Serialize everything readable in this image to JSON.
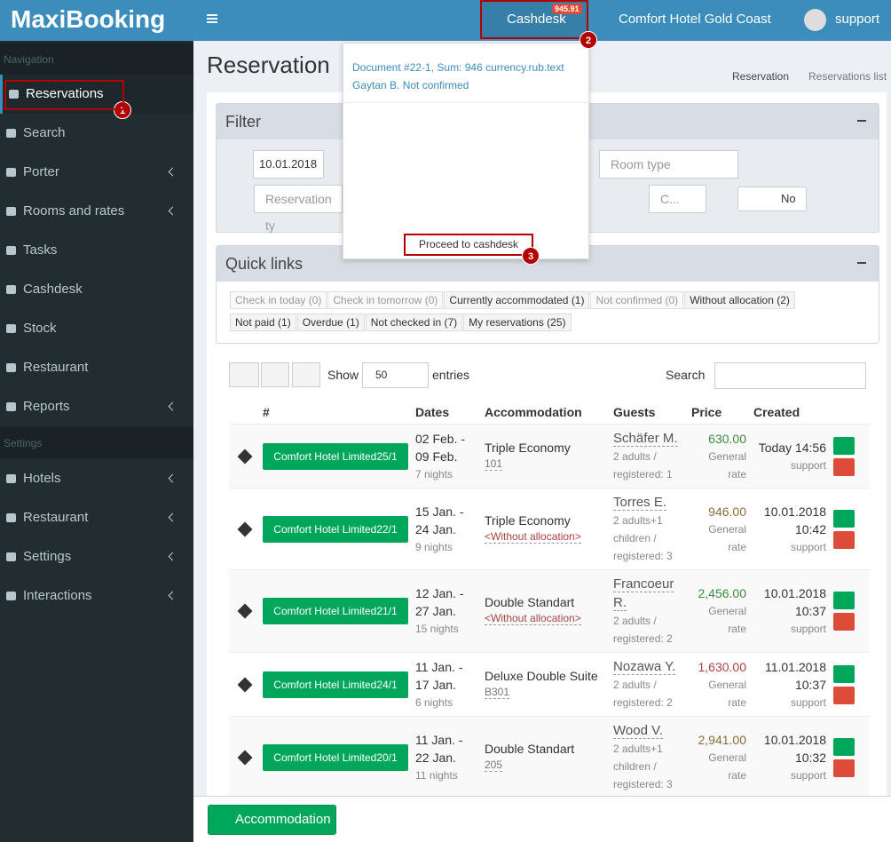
{
  "brand": "MaxiBooking",
  "topbar": {
    "cashdesk": "Cashdesk",
    "badge": "945.91",
    "hotel": "Comfort Hotel Gold Coast",
    "user": "support"
  },
  "annotations": [
    "1",
    "2",
    "3"
  ],
  "sidebar": {
    "nav_header": "Navigation",
    "nav_items": [
      {
        "label": "Reservations",
        "expandable": false
      },
      {
        "label": "Search",
        "expandable": false
      },
      {
        "label": "Porter",
        "expandable": true
      },
      {
        "label": "Rooms and rates",
        "expandable": true
      },
      {
        "label": "Tasks",
        "expandable": false
      },
      {
        "label": "Cashdesk",
        "expandable": false
      },
      {
        "label": "Stock",
        "expandable": false
      },
      {
        "label": "Restaurant",
        "expandable": false
      },
      {
        "label": "Reports",
        "expandable": true
      }
    ],
    "settings_header": "Settings",
    "settings_items": [
      {
        "label": "Hotels",
        "expandable": true
      },
      {
        "label": "Restaurant",
        "expandable": true
      },
      {
        "label": "Settings",
        "expandable": true
      },
      {
        "label": "Interactions",
        "expandable": true
      }
    ]
  },
  "page": {
    "title": "Reservation",
    "breadcrumb": [
      "Reservation",
      "Reservations list"
    ]
  },
  "dropdown": {
    "document": "Document #22-1, Sum: 946 currency.rub.text",
    "guest": "Gaytan B. Not confirmed",
    "button": "Proceed to cashdesk"
  },
  "filter": {
    "title": "Filter",
    "date": "10.01.2018",
    "room_type": "Room type",
    "reservation_type": "Reservation ty",
    "c_select": "C...",
    "toggle": "No"
  },
  "quick_links": {
    "title": "Quick links",
    "links": [
      {
        "label": "Check in today (0)",
        "muted": true
      },
      {
        "label": "Check in tomorrow (0)",
        "muted": true
      },
      {
        "label": "Currently accommodated (1)",
        "muted": false
      },
      {
        "label": "Not confirmed (0)",
        "muted": true
      },
      {
        "label": "Without allocation (2)",
        "muted": false
      },
      {
        "label": "Not paid (1)",
        "muted": false
      },
      {
        "label": "Overdue (1)",
        "muted": false
      },
      {
        "label": "Not checked in (7)",
        "muted": false
      },
      {
        "label": "My reservations (25)",
        "muted": false
      }
    ]
  },
  "table": {
    "show": "Show",
    "page_size": "50",
    "entries": "entries",
    "search": "Search",
    "headers": [
      "#",
      "Dates",
      "Accommodation",
      "Guests",
      "Price",
      "Created"
    ],
    "rows": [
      {
        "hotel": "Comfort Hotel Limited25/1",
        "date_from": "02 Feb. -",
        "date_to": "09 Feb.",
        "nights": "7 nights",
        "room_type": "Triple Economy",
        "room": "101",
        "guest": "Schäfer M.",
        "guests": "2 adults / registered: 1",
        "price": "630.00",
        "price_color": "#3c8a3c",
        "rate": "General rate",
        "created": "Today 14:56",
        "created_by": "support"
      },
      {
        "hotel": "Comfort Hotel Limited22/1",
        "date_from": "15 Jan. -",
        "date_to": "24 Jan.",
        "nights": "9 nights",
        "room_type": "Triple Economy",
        "room": "<Without allocation>",
        "guest": "Torres E.",
        "guests": "2 adults+1 children / registered: 3",
        "price": "946.00",
        "price_color": "#8a6d3b",
        "rate": "General rate",
        "created": "10.01.2018 10:42",
        "created_by": "support"
      },
      {
        "hotel": "Comfort Hotel Limited21/1",
        "date_from": "12 Jan. -",
        "date_to": "27 Jan.",
        "nights": "15 nights",
        "room_type": "Double Standart",
        "room": "<Without allocation>",
        "guest": "Francoeur R.",
        "guests": "2 adults / registered: 2",
        "price": "2,456.00",
        "price_color": "#3c8a3c",
        "rate": "General rate",
        "created": "10.01.2018 10:37",
        "created_by": "support"
      },
      {
        "hotel": "Comfort Hotel Limited24/1",
        "date_from": "11 Jan. -",
        "date_to": "17 Jan.",
        "nights": "6 nights",
        "room_type": "Deluxe Double Suite",
        "room": "B301",
        "guest": "Nozawa Y.",
        "guests": "2 adults / registered: 2",
        "price": "1,630.00",
        "price_color": "#a94442",
        "rate": "General rate",
        "created": "11.01.2018 10:37",
        "created_by": "support"
      },
      {
        "hotel": "Comfort Hotel Limited20/1",
        "date_from": "11 Jan. -",
        "date_to": "22 Jan.",
        "nights": "11 nights",
        "room_type": "Double Standart",
        "room": "205",
        "guest": "Wood V.",
        "guests": "2 adults+1 children / registered: 3",
        "price": "2,941.00",
        "price_color": "#8a6d3b",
        "rate": "General rate",
        "created": "10.01.2018 10:32",
        "created_by": "support"
      }
    ]
  },
  "footer": {
    "button": "Accommodation"
  }
}
